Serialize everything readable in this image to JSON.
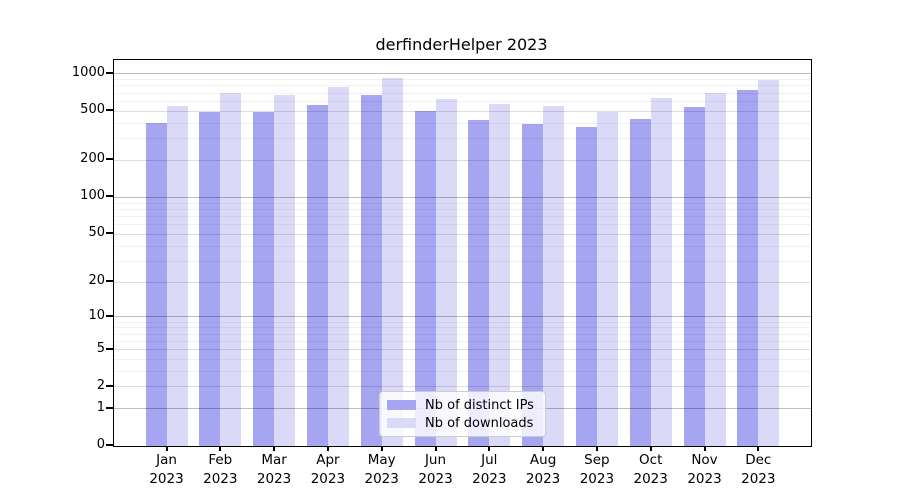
{
  "title": "derfinderHelper 2023",
  "chart_data": {
    "type": "bar",
    "title": "derfinderHelper 2023",
    "year_label": "2023",
    "categories": [
      "Jan",
      "Feb",
      "Mar",
      "Apr",
      "May",
      "Jun",
      "Jul",
      "Aug",
      "Sep",
      "Oct",
      "Nov",
      "Dec"
    ],
    "series": [
      {
        "name": "Nb of distinct IPs",
        "color": "#a5a5f2",
        "values": [
          400,
          495,
          490,
          560,
          670,
          500,
          425,
          395,
          370,
          430,
          540,
          745
        ]
      },
      {
        "name": "Nb of downloads",
        "color": "#dadaf8",
        "values": [
          550,
          700,
          675,
          785,
          920,
          625,
          575,
          550,
          490,
          635,
          700,
          890
        ]
      }
    ],
    "y_axis": {
      "scale": "log1p",
      "major_ticks": [
        0,
        1,
        2,
        5,
        10,
        20,
        50,
        100,
        200,
        500,
        1000
      ],
      "minor_ticks": [
        3,
        4,
        6,
        7,
        8,
        9,
        30,
        40,
        60,
        70,
        80,
        90,
        300,
        400,
        600,
        700,
        800,
        900
      ],
      "power_ticks": [
        1,
        10,
        100,
        1000
      ],
      "top_value": 1296
    },
    "legend_position": "bottom-center",
    "grid": true
  },
  "colors": {
    "grid_power": "rgba(0,0,0,0.26)",
    "grid_major": "rgba(0,0,0,0.13)",
    "grid_minor": "rgba(0,0,0,0.055)",
    "axis": "#000000",
    "background": "#ffffff"
  }
}
